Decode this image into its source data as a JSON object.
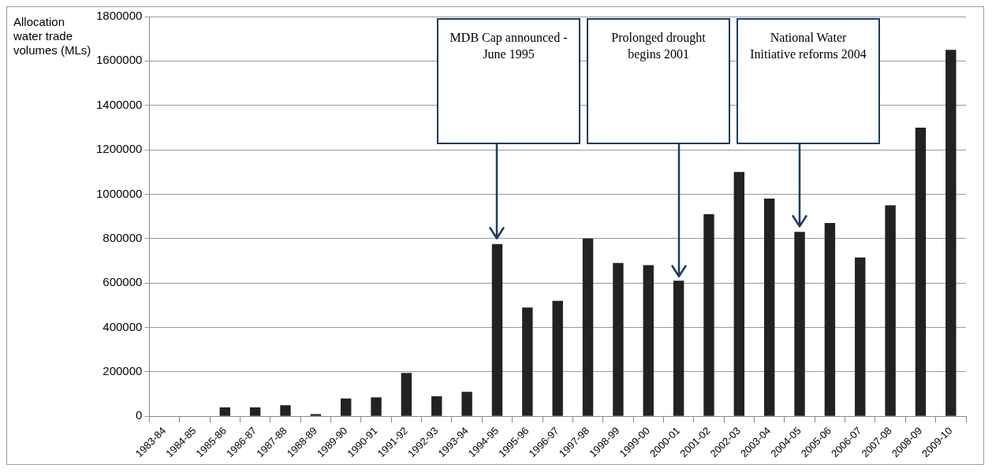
{
  "chart_data": {
    "type": "bar",
    "ylabel": "Allocation water trade volumes (MLs)",
    "categories": [
      "1983-84",
      "1984-85",
      "1985-86",
      "1986-87",
      "1987-88",
      "1988-89",
      "1989-90",
      "1990-91",
      "1991-92",
      "1992-93",
      "1993-94",
      "1994-95",
      "1995-96",
      "1996-97",
      "1997-98",
      "1998-99",
      "1999-00",
      "2000-01",
      "2001-02",
      "2002-03",
      "2003-04",
      "2004-05",
      "2005-06",
      "2006-07",
      "2007-08",
      "2008-09",
      "2009-10"
    ],
    "values": [
      0,
      0,
      40000,
      40000,
      50000,
      10000,
      80000,
      85000,
      195000,
      90000,
      110000,
      775000,
      490000,
      520000,
      800000,
      690000,
      680000,
      610000,
      910000,
      1100000,
      980000,
      830000,
      870000,
      715000,
      950000,
      1300000,
      1650000
    ],
    "color": "#222222",
    "ylim": [
      0,
      1800000
    ],
    "yticks": [
      0,
      200000,
      400000,
      600000,
      800000,
      1000000,
      1200000,
      1400000,
      1600000,
      1800000
    ],
    "grid": "y",
    "annotations": [
      "MDB Cap announced - June 1995",
      "Prolonged drought begins 2001",
      "National Water Initiative reforms 2004"
    ]
  }
}
